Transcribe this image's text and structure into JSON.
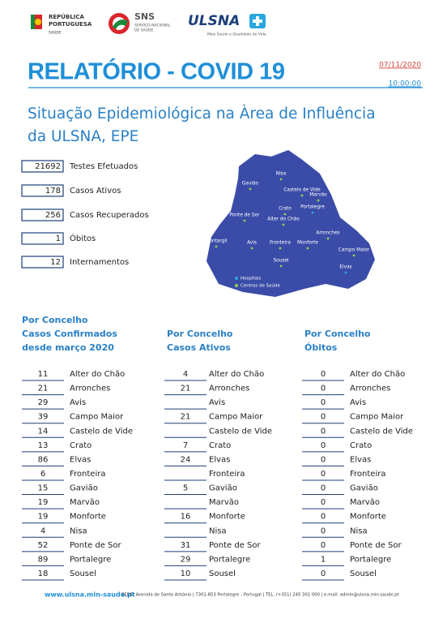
{
  "header": {
    "logo_rp": [
      "REPÚBLICA",
      "PORTUGUESA",
      "SAÚDE"
    ],
    "logo_sns": [
      "SNS",
      "SERVIÇO NACIONAL",
      "DE SAÚDE"
    ],
    "logo_ulsna": [
      "ULSNA",
      "Mais Saúde e Qualidade de Vida"
    ]
  },
  "title": "RELATÓRIO - COVID 19",
  "date": "07/11/2020",
  "time": "10:00:00",
  "subtitle": [
    "Situação Epidemiológica na Àrea de Influência",
    "da ULSNA, EPE"
  ],
  "summary": [
    {
      "value": 21692,
      "label": "Testes Efetuados"
    },
    {
      "value": 178,
      "label": "Casos Ativos"
    },
    {
      "value": 256,
      "label": "Casos Recuperados"
    },
    {
      "value": 1,
      "label": "Óbitos"
    },
    {
      "value": 12,
      "label": "Internamentos"
    }
  ],
  "map": {
    "places": [
      "Nisa",
      "Gavião",
      "Castelo de Vide",
      "Marvão",
      "Crato",
      "Portalegre",
      "Ponte de Sor",
      "Alter do Chão",
      "Arronches",
      "Montargil",
      "Avis",
      "Fronteira",
      "Monforte",
      "Campo Maior",
      "Sousel",
      "Elvas"
    ],
    "legend": [
      "Hospitais",
      "Centros de Saúde"
    ]
  },
  "tables": [
    {
      "heading": [
        "Por Concelho",
        "Casos Confirmados",
        "desde março 2020"
      ],
      "rows": [
        [
          11,
          "Alter do Chão"
        ],
        [
          21,
          "Arronches"
        ],
        [
          29,
          "Avis"
        ],
        [
          39,
          "Campo Maior"
        ],
        [
          14,
          "Castelo de Vide"
        ],
        [
          13,
          "Crato"
        ],
        [
          86,
          "Elvas"
        ],
        [
          6,
          "Fronteira"
        ],
        [
          15,
          "Gavião"
        ],
        [
          19,
          "Marvão"
        ],
        [
          19,
          "Monforte"
        ],
        [
          4,
          "Nisa"
        ],
        [
          52,
          "Ponte de Sor"
        ],
        [
          89,
          "Portalegre"
        ],
        [
          18,
          "Sousel"
        ]
      ]
    },
    {
      "heading": [
        "Por Concelho",
        "Casos Ativos"
      ],
      "rows": [
        [
          4,
          "Alter do Chão"
        ],
        [
          21,
          "Arronches"
        ],
        [
          null,
          "Avis"
        ],
        [
          21,
          "Campo Maior"
        ],
        [
          null,
          "Castelo de Vide"
        ],
        [
          7,
          "Crato"
        ],
        [
          24,
          "Elvas"
        ],
        [
          null,
          "Fronteira"
        ],
        [
          5,
          "Gavião"
        ],
        [
          null,
          "Marvão"
        ],
        [
          16,
          "Monforte"
        ],
        [
          null,
          "Nisa"
        ],
        [
          31,
          "Ponte de Sor"
        ],
        [
          29,
          "Portalegre"
        ],
        [
          10,
          "Sousel"
        ]
      ]
    },
    {
      "heading": [
        "Por Concelho",
        "Óbitos"
      ],
      "rows": [
        [
          0,
          "Alter do Chão"
        ],
        [
          0,
          "Arronches"
        ],
        [
          0,
          "Avis"
        ],
        [
          0,
          "Campo Maior"
        ],
        [
          0,
          "Castelo de Vide"
        ],
        [
          0,
          "Crato"
        ],
        [
          0,
          "Elvas"
        ],
        [
          0,
          "Fronteira"
        ],
        [
          0,
          "Gavião"
        ],
        [
          0,
          "Marvão"
        ],
        [
          0,
          "Monforte"
        ],
        [
          0,
          "Nisa"
        ],
        [
          0,
          "Ponte de Sor"
        ],
        [
          1,
          "Portalegre"
        ],
        [
          0,
          "Sousel"
        ]
      ]
    }
  ],
  "footer": {
    "site": "www.ulsna.min-saude.pt",
    "address": "SEDE: Avenida de Santo António | 7301-853 Portalegre - Portugal | TEL. (+351) 245 301 000 | e-mail. admin@ulsna.min-saude.pt"
  }
}
